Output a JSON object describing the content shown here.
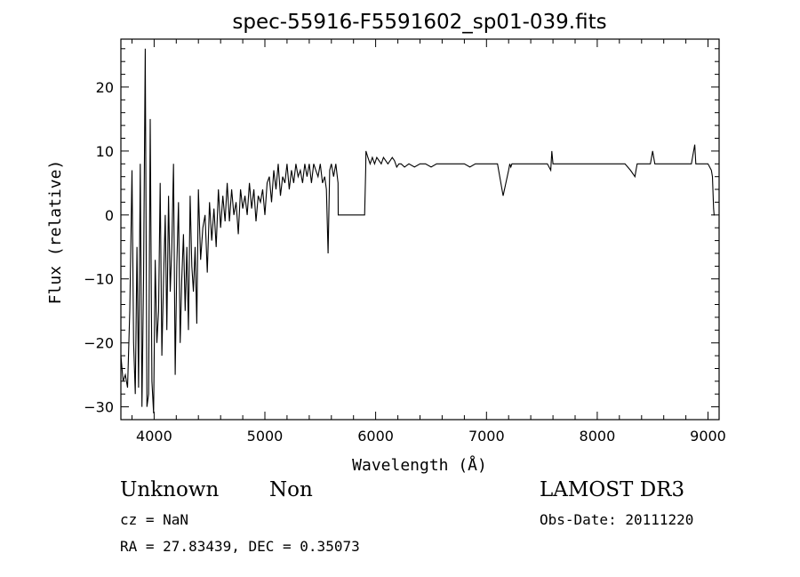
{
  "chart_data": {
    "type": "line",
    "title": "spec-55916-F5591602_sp01-039.fits",
    "xlabel": "Wavelength (Å)",
    "ylabel": "Flux (relative)",
    "xlim": [
      3700,
      9100
    ],
    "ylim": [
      -32,
      27.5
    ],
    "x_ticks": [
      4000,
      5000,
      6000,
      7000,
      8000,
      9000
    ],
    "y_ticks": [
      -30,
      -20,
      -10,
      0,
      10,
      20
    ],
    "grid": false,
    "series": [
      {
        "name": "spectrum",
        "x": [
          3700,
          3720,
          3740,
          3760,
          3780,
          3800,
          3815,
          3830,
          3845,
          3860,
          3875,
          3890,
          3905,
          3920,
          3935,
          3950,
          3965,
          3980,
          3995,
          4010,
          4025,
          4040,
          4055,
          4070,
          4085,
          4100,
          4115,
          4130,
          4145,
          4160,
          4175,
          4190,
          4205,
          4220,
          4235,
          4250,
          4265,
          4280,
          4295,
          4310,
          4325,
          4340,
          4355,
          4370,
          4385,
          4400,
          4420,
          4440,
          4460,
          4480,
          4500,
          4520,
          4540,
          4560,
          4580,
          4600,
          4620,
          4640,
          4660,
          4680,
          4700,
          4720,
          4740,
          4760,
          4780,
          4800,
          4820,
          4840,
          4860,
          4880,
          4900,
          4920,
          4940,
          4960,
          4980,
          5000,
          5020,
          5040,
          5060,
          5080,
          5100,
          5120,
          5140,
          5160,
          5180,
          5200,
          5220,
          5240,
          5260,
          5280,
          5300,
          5320,
          5340,
          5360,
          5380,
          5400,
          5420,
          5440,
          5460,
          5480,
          5500,
          5520,
          5540,
          5555,
          5570,
          5585,
          5600,
          5620,
          5640,
          5660,
          5662,
          5700,
          5800,
          5900,
          5910,
          5912,
          5930,
          5950,
          5970,
          5990,
          6010,
          6030,
          6050,
          6070,
          6090,
          6110,
          6130,
          6150,
          6170,
          6190,
          6210,
          6230,
          6260,
          6300,
          6350,
          6400,
          6450,
          6500,
          6550,
          6600,
          6650,
          6700,
          6750,
          6800,
          6850,
          6900,
          6950,
          7000,
          7050,
          7100,
          7150,
          7200,
          7210,
          7220,
          7230,
          7250,
          7300,
          7350,
          7400,
          7450,
          7500,
          7550,
          7580,
          7590,
          7600,
          7650,
          7700,
          7750,
          7800,
          7850,
          7900,
          7950,
          8000,
          8050,
          8100,
          8150,
          8200,
          8250,
          8300,
          8340,
          8350,
          8360,
          8400,
          8450,
          8480,
          8500,
          8520,
          8550,
          8600,
          8650,
          8700,
          8750,
          8800,
          8850,
          8880,
          8890,
          8900,
          8950,
          9000,
          9030,
          9040,
          9050,
          9055,
          9060
        ],
        "y": [
          -22,
          -26,
          -25,
          -27,
          -15,
          7,
          -20,
          -28,
          -5,
          -27,
          8,
          -30,
          -10,
          26,
          -30,
          -28,
          15,
          -26,
          -31,
          -7,
          -20,
          -15,
          5,
          -22,
          -10,
          0,
          -18,
          3,
          -12,
          -5,
          8,
          -25,
          -8,
          2,
          -20,
          -10,
          -3,
          -15,
          -5,
          -18,
          3,
          -8,
          -12,
          -5,
          -17,
          4,
          -7,
          -2,
          0,
          -9,
          2,
          -4,
          1,
          -5,
          4,
          -2,
          3,
          -1,
          5,
          -1,
          4,
          0,
          2,
          -3,
          4,
          1,
          3,
          0,
          5,
          1,
          4,
          -1,
          3,
          2,
          4,
          0,
          5,
          6,
          2,
          7,
          4,
          8,
          3,
          6,
          5,
          8,
          4,
          7,
          5,
          8,
          6,
          7,
          5,
          8,
          6,
          8,
          5,
          8,
          7,
          6,
          8,
          5,
          6,
          4,
          -6,
          7,
          8,
          6,
          8,
          5,
          0,
          0,
          0,
          0,
          7,
          10,
          9,
          8,
          9,
          8,
          9,
          8.5,
          8,
          9,
          8.5,
          8,
          8.5,
          9,
          8.5,
          7.5,
          8,
          8,
          7.5,
          8,
          7.5,
          8,
          8,
          7.5,
          8,
          8,
          8,
          8,
          8,
          8,
          7.5,
          8,
          8,
          8,
          8,
          8,
          3,
          7,
          8,
          7.5,
          8,
          8,
          8,
          8,
          8,
          8,
          8,
          8,
          7,
          10,
          8,
          8,
          8,
          8,
          8,
          8,
          8,
          8,
          8,
          8,
          8,
          8,
          8,
          8,
          7,
          6,
          7,
          8,
          8,
          8,
          8,
          10,
          8,
          8,
          8,
          8,
          8,
          8,
          8,
          8,
          11,
          8,
          8,
          8,
          8,
          7,
          6,
          1,
          0,
          0
        ]
      }
    ]
  },
  "footer": {
    "object_class": "Unknown",
    "object_subclass": "Non",
    "survey": "LAMOST DR3",
    "cz": "cz = NaN",
    "obs_date": "Obs-Date: 20111220",
    "coords": "RA =  27.83439, DEC =   0.35073"
  }
}
